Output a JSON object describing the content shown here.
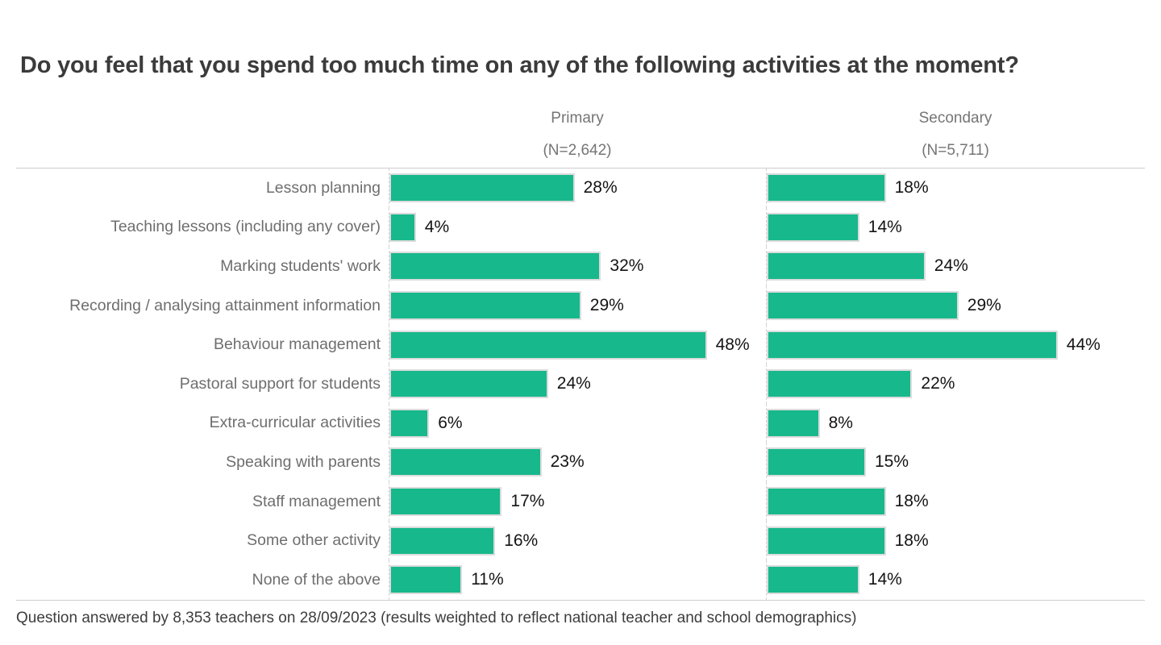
{
  "title": "Do you feel that you spend too much time on any of the following activities at the moment?",
  "footer": "Question answered by 8,353 teachers on 28/09/2023 (results weighted to reflect national teacher and school demographics)",
  "colors": {
    "bar": "#17b88c",
    "bar_border": "#dcdcdc",
    "title_text": "#3b3b3b",
    "category_text": "#6e6e6e",
    "header_text": "#757575",
    "value_text": "#141414",
    "rule": "#cccccc"
  },
  "chart_data": {
    "type": "bar",
    "orientation": "horizontal",
    "title": "Do you feel that you spend too much time on any of the following activities at the moment?",
    "value_suffix": "%",
    "xlim": [
      0,
      52
    ],
    "grid": false,
    "legend_position": "column-headers-top",
    "categories": [
      "Lesson planning",
      "Teaching lessons (including any cover)",
      "Marking students' work",
      "Recording / analysing attainment information",
      "Behaviour management",
      "Pastoral support for students",
      "Extra-curricular activities",
      "Speaking with parents",
      "Staff management",
      "Some other activity",
      "None of the above"
    ],
    "series": [
      {
        "name": "Primary",
        "n_label": "(N=2,642)",
        "values": [
          28,
          4,
          32,
          29,
          48,
          24,
          6,
          23,
          17,
          16,
          11
        ]
      },
      {
        "name": "Secondary",
        "n_label": "(N=5,711)",
        "values": [
          18,
          14,
          24,
          29,
          44,
          22,
          8,
          15,
          18,
          18,
          14
        ]
      }
    ],
    "annotation": "Question answered by 8,353 teachers on 28/09/2023 (results weighted to reflect national teacher and school demographics)"
  }
}
